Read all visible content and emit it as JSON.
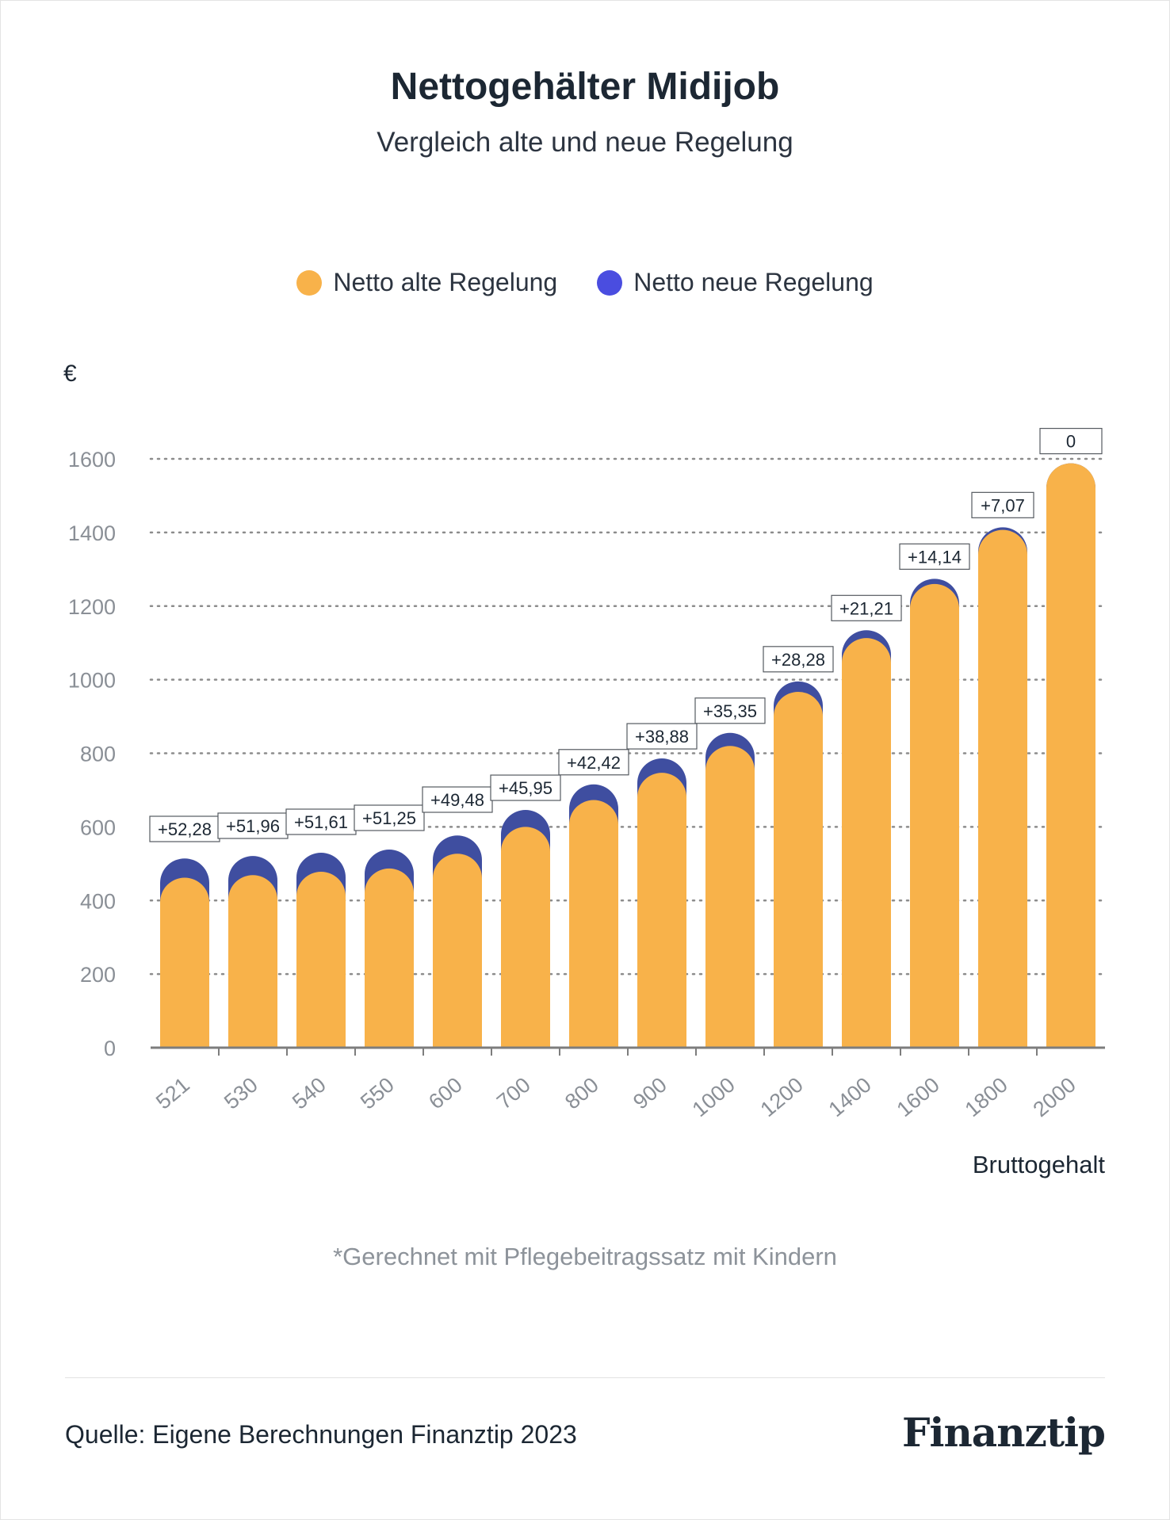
{
  "title": "Nettogehälter Midijob",
  "subtitle": "Vergleich alte und neue Regelung",
  "legend": {
    "old": {
      "label": "Netto alte Regelung",
      "color": "#f8b24a"
    },
    "new": {
      "label": "Netto neue Regelung",
      "color": "#4a4de0"
    }
  },
  "colors": {
    "bar_new": "#3f4ea0",
    "bar_old": "#f8b24a"
  },
  "unit": "€",
  "note": "*Gerechnet mit Pflegebeitragssatz mit Kindern",
  "source": "Quelle: Eigene Berechnungen Finanztip 2023",
  "logo": "Finanztip",
  "chart_data": {
    "type": "bar",
    "title": "Nettogehälter Midijob",
    "subtitle": "Vergleich alte und neue Regelung",
    "xlabel": "Bruttogehalt",
    "ylabel": "€",
    "ylim": [
      0,
      1600
    ],
    "yticks": [
      0,
      200,
      400,
      600,
      800,
      1000,
      1200,
      1400,
      1600
    ],
    "grid": true,
    "legend": "top-center",
    "categories": [
      "521",
      "530",
      "540",
      "550",
      "600",
      "700",
      "800",
      "900",
      "1000",
      "1200",
      "1400",
      "1600",
      "1800",
      "2000"
    ],
    "series": [
      {
        "name": "Netto alte Regelung",
        "values": [
          462,
          469,
          478,
          487,
          527,
          600,
          673,
          747,
          820,
          967,
          1113,
          1260,
          1407,
          1588
        ]
      },
      {
        "name": "Netto neue Regelung",
        "values": [
          514.28,
          520.96,
          529.61,
          538.25,
          576.48,
          645.95,
          715.42,
          785.88,
          855.35,
          995.28,
          1134.21,
          1274.14,
          1414.07,
          1588
        ]
      }
    ],
    "annotations": [
      "+52,28",
      "+51,96",
      "+51,61",
      "+51,25",
      "+49,48",
      "+45,95",
      "+42,42",
      "+38,88",
      "+35,35",
      "+28,28",
      "+21,21",
      "+14,14",
      "+7,07",
      "0"
    ]
  }
}
